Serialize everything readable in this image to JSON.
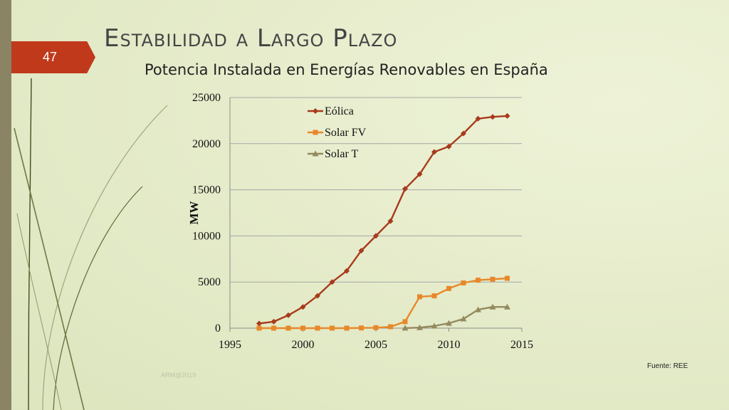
{
  "slide": {
    "number": "47",
    "title": "Estabilidad a Largo Plazo",
    "subtitle": "Potencia Instalada en Energías Renovables en España",
    "source": "Fuente: REE",
    "footer": "ARM@2019"
  },
  "colors": {
    "accent": "#c0391b",
    "sidebar": "#8a8465",
    "eolica": "#a83a1c",
    "solar_fv": "#e8882a",
    "solar_t": "#948a5e"
  },
  "chart_data": {
    "type": "scatter",
    "title": "",
    "xlabel": "",
    "ylabel": "MW",
    "xlim": [
      1995,
      2015
    ],
    "ylim": [
      0,
      25000
    ],
    "xticks": [
      1995,
      2000,
      2005,
      2010,
      2015
    ],
    "yticks": [
      0,
      5000,
      10000,
      15000,
      20000,
      25000
    ],
    "grid": "horizontal",
    "legend": "top-left",
    "series": [
      {
        "name": "Eólica",
        "marker": "diamond",
        "color": "#a83a1c",
        "points": [
          [
            1997,
            500
          ],
          [
            1998,
            700
          ],
          [
            1999,
            1400
          ],
          [
            2000,
            2300
          ],
          [
            2001,
            3500
          ],
          [
            2002,
            5000
          ],
          [
            2003,
            6200
          ],
          [
            2004,
            8400
          ],
          [
            2005,
            10000
          ],
          [
            2006,
            11600
          ],
          [
            2007,
            15100
          ],
          [
            2008,
            16700
          ],
          [
            2009,
            19100
          ],
          [
            2010,
            19700
          ],
          [
            2011,
            21100
          ],
          [
            2012,
            22700
          ],
          [
            2013,
            22900
          ],
          [
            2014,
            23000
          ]
        ]
      },
      {
        "name": "Solar FV",
        "marker": "square",
        "color": "#e8882a",
        "points": [
          [
            1997,
            0
          ],
          [
            1998,
            0
          ],
          [
            1999,
            0
          ],
          [
            2000,
            0
          ],
          [
            2001,
            0
          ],
          [
            2002,
            0
          ],
          [
            2003,
            0
          ],
          [
            2004,
            20
          ],
          [
            2005,
            50
          ],
          [
            2006,
            150
          ],
          [
            2007,
            700
          ],
          [
            2008,
            3400
          ],
          [
            2009,
            3500
          ],
          [
            2010,
            4300
          ],
          [
            2011,
            4900
          ],
          [
            2012,
            5200
          ],
          [
            2013,
            5300
          ],
          [
            2014,
            5400
          ]
        ]
      },
      {
        "name": "Solar T",
        "marker": "triangle",
        "color": "#948a5e",
        "points": [
          [
            2007,
            10
          ],
          [
            2008,
            60
          ],
          [
            2009,
            230
          ],
          [
            2010,
            530
          ],
          [
            2011,
            1000
          ],
          [
            2012,
            2000
          ],
          [
            2013,
            2300
          ],
          [
            2014,
            2300
          ]
        ]
      }
    ]
  }
}
